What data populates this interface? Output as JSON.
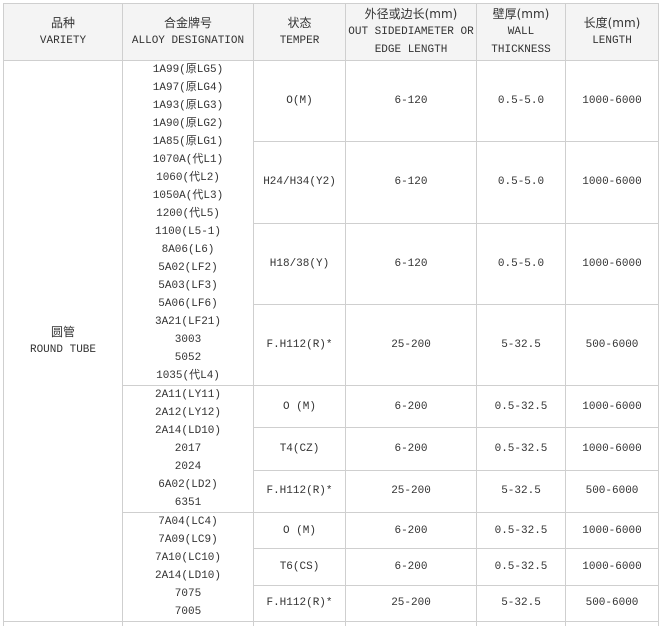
{
  "headers": [
    {
      "cn": "品种",
      "en": "VARIETY"
    },
    {
      "cn": "合金牌号",
      "en": "ALLOY DESIGNATION"
    },
    {
      "cn": "状态",
      "en": "TEMPER"
    },
    {
      "cn": "外径或边长(mm)",
      "en": "OUT SIDEDIAMETER OR EDGE LENGTH"
    },
    {
      "cn": "壁厚(mm)",
      "en": "WALL THICKNESS"
    },
    {
      "cn": "长度(mm)",
      "en": "LENGTH"
    }
  ],
  "variety": {
    "cn": "圆管",
    "en": "ROUND TUBE"
  },
  "groups": [
    {
      "alloys": [
        "1A99(原LG5)",
        "1A97(原LG4)",
        "1A93(原LG3)",
        "1A90(原LG2)",
        "1A85(原LG1)",
        "1070A(代L1)",
        "1060(代L2)",
        "1050A(代L3)",
        "1200(代L5)",
        "1100(L5-1)",
        "8A06(L6)",
        "5A02(LF2)",
        "5A03(LF3)",
        "5A06(LF6)",
        "3A21(LF21)",
        "3003",
        "5052",
        "1035(代L4)"
      ],
      "rows": [
        {
          "temper": "O(M)",
          "diameter": "6-120",
          "wall": "0.5-5.0",
          "length": "1000-6000"
        },
        {
          "temper": "H24/H34(Y2)",
          "diameter": "6-120",
          "wall": "0.5-5.0",
          "length": "1000-6000"
        },
        {
          "temper": "H18/38(Y)",
          "diameter": "6-120",
          "wall": "0.5-5.0",
          "length": "1000-6000"
        },
        {
          "temper": "F.H112(R)*",
          "diameter": "25-200",
          "wall": "5-32.5",
          "length": "500-6000"
        }
      ]
    },
    {
      "alloys": [
        "2A11(LY11)",
        "2A12(LY12)",
        "2A14(LD10)",
        "2017",
        "2024",
        "6A02(LD2)",
        "6351"
      ],
      "rows": [
        {
          "temper": "O (M)",
          "diameter": "6-200",
          "wall": "0.5-32.5",
          "length": "1000-6000"
        },
        {
          "temper": "T4(CZ)",
          "diameter": "6-200",
          "wall": "0.5-32.5",
          "length": "1000-6000"
        },
        {
          "temper": "F.H112(R)*",
          "diameter": "25-200",
          "wall": "5-32.5",
          "length": "500-6000"
        }
      ]
    },
    {
      "alloys": [
        "7A04(LC4)",
        "7A09(LC9)",
        "7A10(LC10)",
        "2A14(LD10)",
        "7075",
        "7005"
      ],
      "rows": [
        {
          "temper": "O (M)",
          "diameter": "6-200",
          "wall": "0.5-32.5",
          "length": "1000-6000"
        },
        {
          "temper": "T6(CS)",
          "diameter": "6-200",
          "wall": "0.5-32.5",
          "length": "1000-6000"
        },
        {
          "temper": "F.H112(R)*",
          "diameter": "25-200",
          "wall": "5-32.5",
          "length": "500-6000"
        }
      ]
    }
  ]
}
